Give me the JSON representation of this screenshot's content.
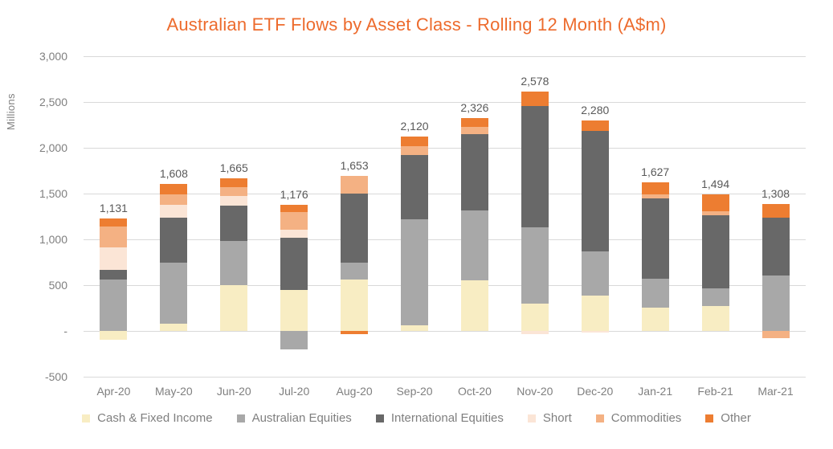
{
  "title": "Australian ETF Flows by Asset Class - Rolling 12 Month (A$m)",
  "y_axis": {
    "unit_label": "Millions",
    "ticks": [
      "3,000",
      "2,500",
      "2,000",
      "1,500",
      "1,000",
      "500",
      "-",
      "-500"
    ]
  },
  "colors": {
    "title": "#ED6B2D",
    "axis_text": "#7F7F7F",
    "data_label_text": "#595959",
    "gridline": "#D9D9D9"
  },
  "chart_data": {
    "type": "bar",
    "stacked": true,
    "grid": true,
    "legend_position": "bottom",
    "title": "Australian ETF Flows by Asset Class - Rolling 12 Month (A$m)",
    "ylabel": "Millions",
    "ylim": [
      -500,
      3000
    ],
    "ytick_step": 500,
    "categories": [
      "Apr-20",
      "May-20",
      "Jun-20",
      "Jul-20",
      "Aug-20",
      "Sep-20",
      "Oct-20",
      "Nov-20",
      "Dec-20",
      "Jan-21",
      "Feb-21",
      "Mar-21"
    ],
    "series": [
      {
        "name": "Cash & Fixed Income",
        "color": "#F8EDC3",
        "values": [
          -100,
          75,
          500,
          450,
          565,
          65,
          555,
          295,
          385,
          257,
          269,
          0
        ]
      },
      {
        "name": "Australian Equities",
        "color": "#A8A8A8",
        "values": [
          560,
          670,
          480,
          -200,
          180,
          1150,
          760,
          840,
          485,
          310,
          195,
          608
        ]
      },
      {
        "name": "International Equities",
        "color": "#686868",
        "values": [
          105,
          490,
          390,
          565,
          755,
          710,
          830,
          1320,
          1315,
          880,
          800,
          630
        ]
      },
      {
        "name": "Short",
        "color": "#FBE5D6",
        "values": [
          250,
          140,
          100,
          90,
          0,
          0,
          0,
          -32,
          -20,
          0,
          0,
          0
        ]
      },
      {
        "name": "Commodities",
        "color": "#F4B183",
        "values": [
          228,
          120,
          100,
          195,
          190,
          95,
          82,
          0,
          0,
          45,
          45,
          -75
        ]
      },
      {
        "name": "Other",
        "color": "#ED7D31",
        "values": [
          88,
          113,
          95,
          76,
          -37,
          100,
          99,
          155,
          115,
          135,
          185,
          145
        ]
      }
    ],
    "totals": [
      1131,
      1608,
      1665,
      1176,
      1653,
      2120,
      2326,
      2578,
      2280,
      1627,
      1494,
      1308
    ],
    "totals_labels": [
      "1,131",
      "1,608",
      "1,665",
      "1,176",
      "1,653",
      "2,120",
      "2,326",
      "2,578",
      "2,280",
      "1,627",
      "1,494",
      "1,308"
    ]
  }
}
